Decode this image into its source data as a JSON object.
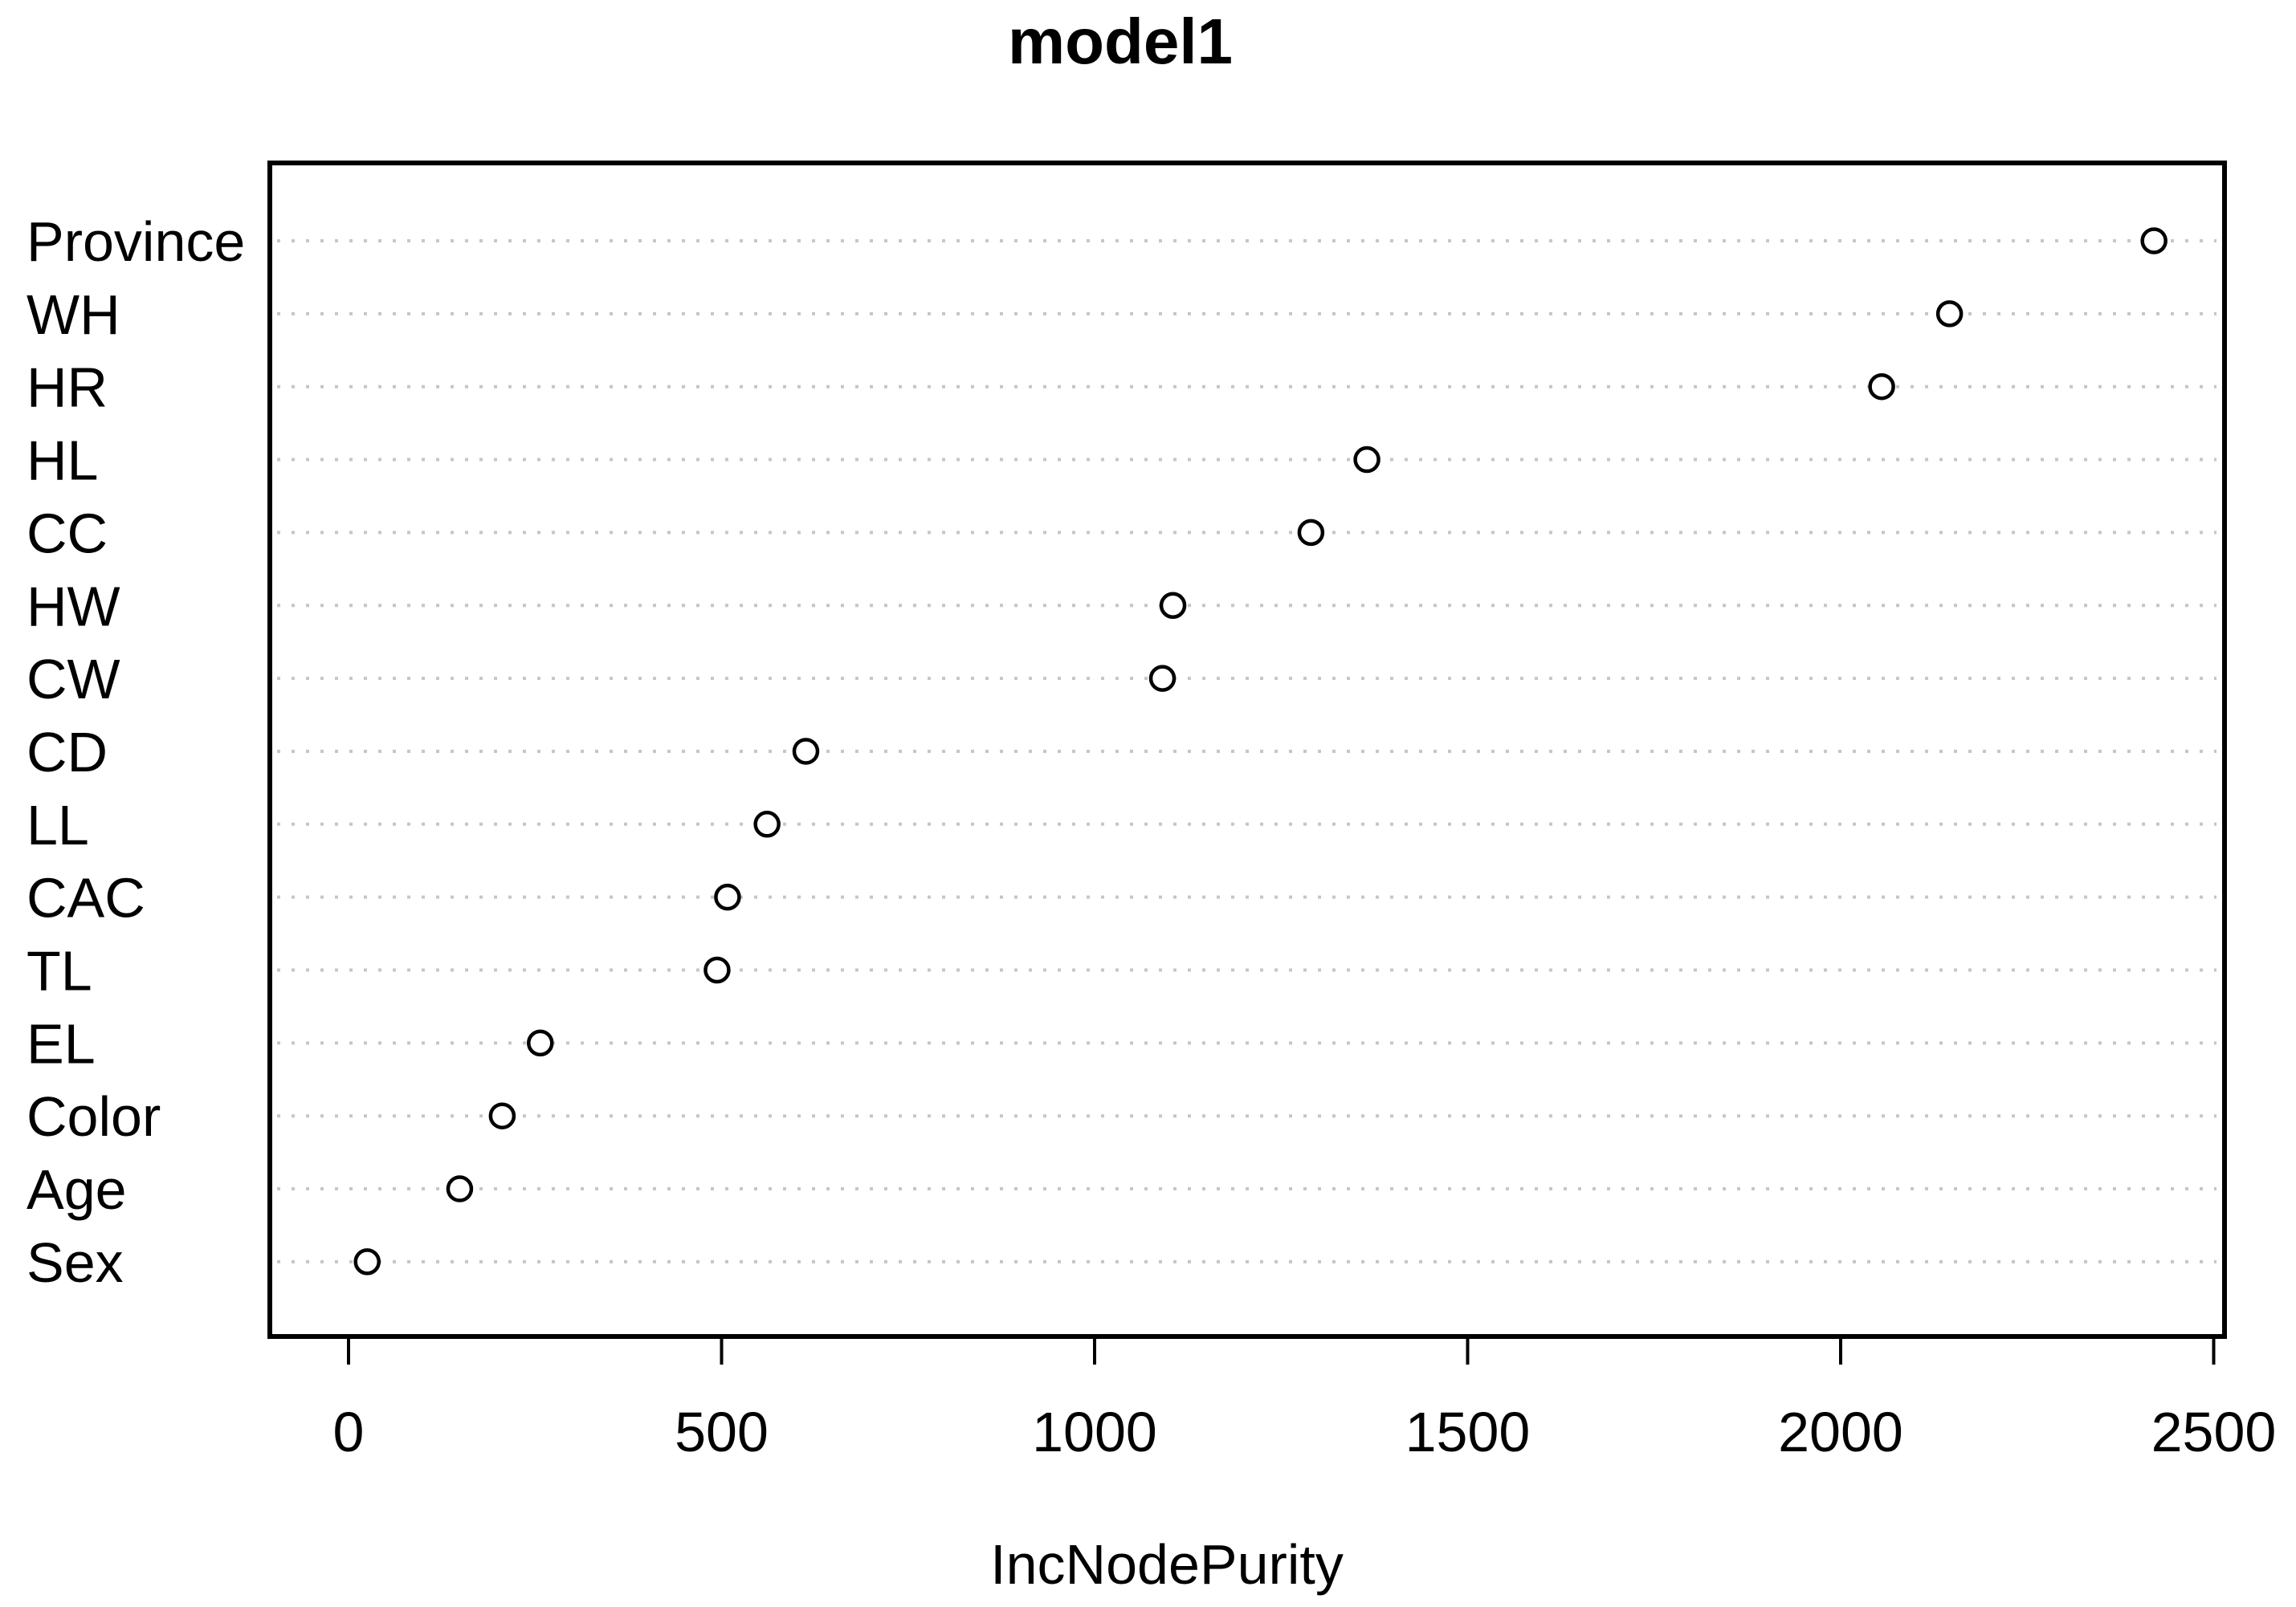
{
  "chart_data": {
    "type": "scatter",
    "subtype": "dot-chart-variable-importance",
    "title": "model1",
    "xlabel": "IncNodePurity",
    "ylabel": "",
    "categories": [
      "Province",
      "WH",
      "HR",
      "HL",
      "CC",
      "HW",
      "CW",
      "CD",
      "LL",
      "CAC",
      "TL",
      "EL",
      "Color",
      "Age",
      "Sex"
    ],
    "values": [
      2420,
      2146,
      2055,
      1365,
      1290,
      1105,
      1091,
      613,
      561,
      508,
      494,
      257,
      206,
      149,
      25
    ],
    "x_ticks": [
      0,
      500,
      1000,
      1500,
      2000,
      2500
    ],
    "xlim": [
      0,
      2500
    ],
    "grid": "horizontal dotted line per category",
    "legend_position": "none",
    "marker": "open-circle",
    "colors": {
      "background": "#ffffff",
      "frame": "#000000",
      "point_stroke": "#000000",
      "point_fill": "#ffffff",
      "grid": "#c6c6c6",
      "text": "#000000"
    }
  }
}
